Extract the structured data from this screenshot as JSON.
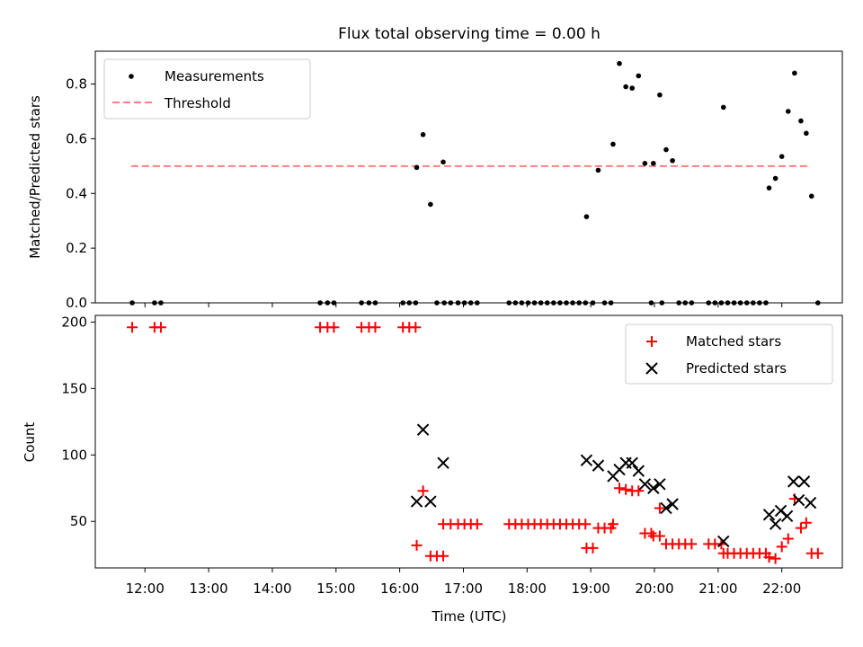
{
  "chart_data": [
    {
      "type": "scatter",
      "title": "Flux total observing time = 0.00 h",
      "ylabel": "Matched/Predicted stars",
      "xlabel": "",
      "xlim_hours": [
        11.22,
        22.95
      ],
      "ylim": [
        0,
        0.92
      ],
      "yticks": [
        0.0,
        0.2,
        0.4,
        0.6,
        0.8
      ],
      "ytick_labels": [
        "0.0",
        "0.2",
        "0.4",
        "0.6",
        "0.8"
      ],
      "legend": {
        "position": "upper-left",
        "entries": [
          {
            "label": "Measurements",
            "color": "#000000",
            "marker": "dot"
          },
          {
            "label": "Threshold",
            "color": "#ff7f7f",
            "marker": "dashed-line"
          }
        ]
      },
      "threshold": {
        "value": 0.5,
        "x_start": "11:47",
        "x_end": "22:27",
        "color": "#ff7f7f"
      },
      "series": [
        {
          "name": "Measurements",
          "color": "#000000",
          "points": [
            [
              "11:48",
              0.0
            ],
            [
              "12:09",
              0.0
            ],
            [
              "12:15",
              0.0
            ],
            [
              "14:45",
              0.0
            ],
            [
              "14:52",
              0.0
            ],
            [
              "14:58",
              0.0
            ],
            [
              "15:24",
              0.0
            ],
            [
              "15:31",
              0.0
            ],
            [
              "15:37",
              0.0
            ],
            [
              "16:03",
              0.0
            ],
            [
              "16:09",
              0.0
            ],
            [
              "16:15",
              0.0
            ],
            [
              "16:16",
              0.495
            ],
            [
              "16:22",
              0.615
            ],
            [
              "16:29",
              0.36
            ],
            [
              "16:35",
              0.0
            ],
            [
              "16:42",
              0.0
            ],
            [
              "16:41",
              0.515
            ],
            [
              "16:48",
              0.0
            ],
            [
              "16:55",
              0.0
            ],
            [
              "17:01",
              0.0
            ],
            [
              "17:07",
              0.0
            ],
            [
              "17:13",
              0.0
            ],
            [
              "17:43",
              0.0
            ],
            [
              "17:49",
              0.0
            ],
            [
              "17:55",
              0.0
            ],
            [
              "18:01",
              0.0
            ],
            [
              "18:07",
              0.0
            ],
            [
              "18:13",
              0.0
            ],
            [
              "18:19",
              0.0
            ],
            [
              "18:25",
              0.0
            ],
            [
              "18:31",
              0.0
            ],
            [
              "18:37",
              0.0
            ],
            [
              "18:43",
              0.0
            ],
            [
              "18:49",
              0.0
            ],
            [
              "18:55",
              0.0
            ],
            [
              "18:56",
              0.315
            ],
            [
              "19:02",
              0.0
            ],
            [
              "19:07",
              0.485
            ],
            [
              "19:13",
              0.0
            ],
            [
              "19:19",
              0.0
            ],
            [
              "19:21",
              0.58
            ],
            [
              "19:27",
              0.875
            ],
            [
              "19:33",
              0.79
            ],
            [
              "19:39",
              0.785
            ],
            [
              "19:45",
              0.83
            ],
            [
              "19:51",
              0.51
            ],
            [
              "19:57",
              0.0
            ],
            [
              "19:59",
              0.51
            ],
            [
              "20:07",
              0.0
            ],
            [
              "20:05",
              0.76
            ],
            [
              "20:11",
              0.56
            ],
            [
              "20:17",
              0.52
            ],
            [
              "20:23",
              0.0
            ],
            [
              "20:29",
              0.0
            ],
            [
              "20:35",
              0.0
            ],
            [
              "20:51",
              0.0
            ],
            [
              "20:57",
              0.0
            ],
            [
              "21:03",
              0.0
            ],
            [
              "21:05",
              0.715
            ],
            [
              "21:09",
              0.0
            ],
            [
              "21:15",
              0.0
            ],
            [
              "21:21",
              0.0
            ],
            [
              "21:27",
              0.0
            ],
            [
              "21:33",
              0.0
            ],
            [
              "21:39",
              0.0
            ],
            [
              "21:45",
              0.0
            ],
            [
              "21:48",
              0.42
            ],
            [
              "21:54",
              0.455
            ],
            [
              "22:00",
              0.535
            ],
            [
              "22:06",
              0.7
            ],
            [
              "22:12",
              0.84
            ],
            [
              "22:18",
              0.665
            ],
            [
              "22:23",
              0.62
            ],
            [
              "22:28",
              0.39
            ],
            [
              "22:34",
              0.0
            ]
          ]
        }
      ]
    },
    {
      "type": "scatter",
      "title": "",
      "xlabel": "Time (UTC)",
      "ylabel": "Count",
      "xlim_hours": [
        11.22,
        22.95
      ],
      "ylim": [
        15,
        205
      ],
      "yticks": [
        50,
        100,
        150,
        200
      ],
      "ytick_labels": [
        "50",
        "100",
        "150",
        "200"
      ],
      "xticks": [
        "12:00",
        "13:00",
        "14:00",
        "15:00",
        "16:00",
        "17:00",
        "18:00",
        "19:00",
        "20:00",
        "21:00",
        "22:00"
      ],
      "legend": {
        "position": "upper-right",
        "entries": [
          {
            "label": "Matched stars",
            "color": "#ff0000",
            "marker": "plus"
          },
          {
            "label": "Predicted stars",
            "color": "#000000",
            "marker": "x"
          }
        ]
      },
      "series": [
        {
          "name": "Matched stars",
          "color": "#ff0000",
          "points": [
            [
              "11:48",
              196
            ],
            [
              "12:09",
              196
            ],
            [
              "12:15",
              196
            ],
            [
              "14:45",
              196
            ],
            [
              "14:52",
              196
            ],
            [
              "14:58",
              196
            ],
            [
              "15:24",
              196
            ],
            [
              "15:31",
              196
            ],
            [
              "15:37",
              196
            ],
            [
              "16:03",
              196
            ],
            [
              "16:09",
              196
            ],
            [
              "16:15",
              196
            ],
            [
              "16:16",
              32
            ],
            [
              "16:22",
              73
            ],
            [
              "16:29",
              24
            ],
            [
              "16:35",
              24
            ],
            [
              "16:41",
              24
            ],
            [
              "16:41",
              48
            ],
            [
              "16:48",
              48
            ],
            [
              "16:55",
              48
            ],
            [
              "17:01",
              48
            ],
            [
              "17:07",
              48
            ],
            [
              "17:13",
              48
            ],
            [
              "17:43",
              48
            ],
            [
              "17:49",
              48
            ],
            [
              "17:55",
              48
            ],
            [
              "18:01",
              48
            ],
            [
              "18:07",
              48
            ],
            [
              "18:13",
              48
            ],
            [
              "18:19",
              48
            ],
            [
              "18:25",
              48
            ],
            [
              "18:31",
              48
            ],
            [
              "18:37",
              48
            ],
            [
              "18:43",
              48
            ],
            [
              "18:49",
              48
            ],
            [
              "18:55",
              48
            ],
            [
              "18:56",
              30
            ],
            [
              "19:02",
              30
            ],
            [
              "19:07",
              45
            ],
            [
              "19:13",
              45
            ],
            [
              "19:19",
              45
            ],
            [
              "19:21",
              48
            ],
            [
              "19:27",
              75
            ],
            [
              "19:33",
              74
            ],
            [
              "19:39",
              73
            ],
            [
              "19:45",
              73
            ],
            [
              "19:51",
              41
            ],
            [
              "19:57",
              41
            ],
            [
              "19:59",
              39
            ],
            [
              "20:05",
              39
            ],
            [
              "20:05",
              60
            ],
            [
              "20:11",
              33
            ],
            [
              "20:17",
              33
            ],
            [
              "20:23",
              33
            ],
            [
              "20:29",
              33
            ],
            [
              "20:35",
              33
            ],
            [
              "20:51",
              33
            ],
            [
              "20:57",
              33
            ],
            [
              "21:03",
              33
            ],
            [
              "21:05",
              26
            ],
            [
              "21:09",
              26
            ],
            [
              "21:15",
              26
            ],
            [
              "21:21",
              26
            ],
            [
              "21:27",
              26
            ],
            [
              "21:33",
              26
            ],
            [
              "21:39",
              26
            ],
            [
              "21:45",
              26
            ],
            [
              "21:48",
              23
            ],
            [
              "21:54",
              22
            ],
            [
              "22:00",
              31
            ],
            [
              "22:06",
              37
            ],
            [
              "22:12",
              67
            ],
            [
              "22:18",
              45
            ],
            [
              "22:23",
              49
            ],
            [
              "22:28",
              26
            ],
            [
              "22:34",
              26
            ]
          ]
        },
        {
          "name": "Predicted stars",
          "color": "#000000",
          "points": [
            [
              "16:16",
              65
            ],
            [
              "16:22",
              119
            ],
            [
              "16:29",
              65
            ],
            [
              "16:41",
              94
            ],
            [
              "18:56",
              96
            ],
            [
              "19:07",
              92
            ],
            [
              "19:21",
              84
            ],
            [
              "19:27",
              89
            ],
            [
              "19:33",
              94
            ],
            [
              "19:39",
              94
            ],
            [
              "19:45",
              88
            ],
            [
              "19:51",
              78
            ],
            [
              "19:59",
              75
            ],
            [
              "20:05",
              78
            ],
            [
              "20:11",
              60
            ],
            [
              "20:17",
              63
            ],
            [
              "21:05",
              35
            ],
            [
              "21:48",
              55
            ],
            [
              "21:54",
              48
            ],
            [
              "21:59",
              58
            ],
            [
              "22:05",
              54
            ],
            [
              "22:11",
              80
            ],
            [
              "22:16",
              66
            ],
            [
              "22:21",
              80
            ],
            [
              "22:27",
              64
            ]
          ]
        }
      ]
    }
  ]
}
